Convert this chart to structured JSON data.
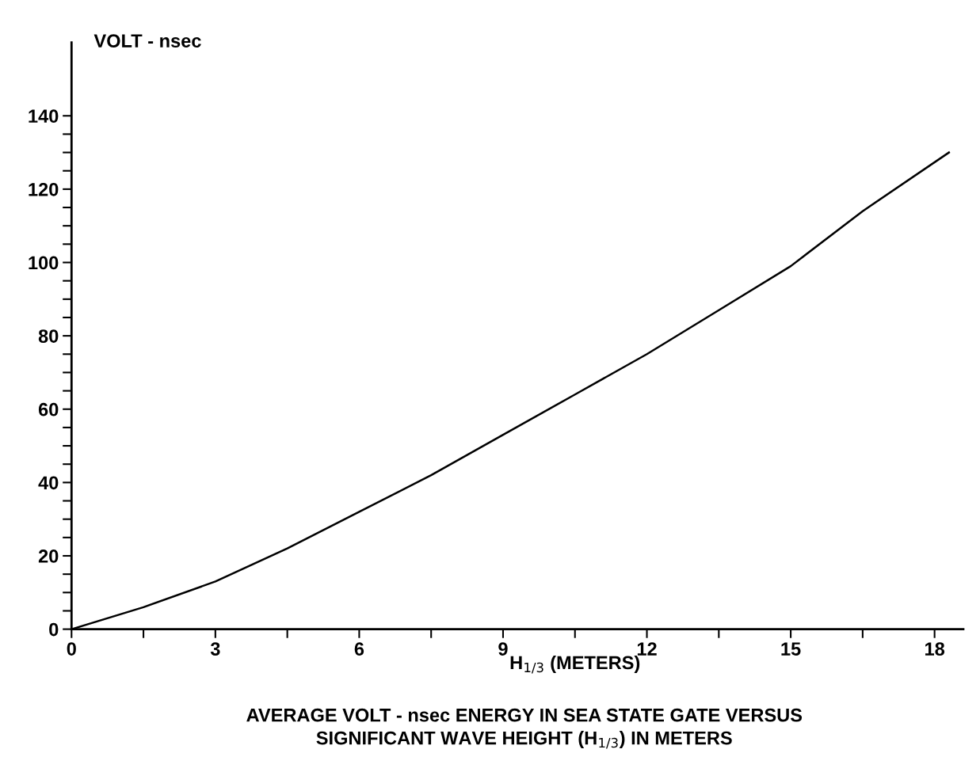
{
  "chart_data": {
    "type": "line",
    "ylabel": "VOLT - nsec",
    "xlabel": "H$_{1/3}$ (METERS)",
    "title": "AVERAGE VOLT - nsec ENERGY IN SEA STATE GATE VERSUS\nSIGNIFICANT WAVE HEIGHT (H$_{1/3}$) IN METERS",
    "x": [
      0,
      1.5,
      3,
      4.5,
      6,
      7.5,
      9,
      10.5,
      12,
      13.5,
      15,
      16.5,
      18.3
    ],
    "series": [
      {
        "color": "#000000",
        "values": [
          0,
          6,
          13,
          22,
          32,
          42,
          53,
          64,
          75,
          87,
          99,
          114,
          130
        ]
      }
    ],
    "xlim": [
      0,
      18.6
    ],
    "ylim": [
      0,
      160
    ],
    "xticks": [
      0,
      {
        "value": 1.5,
        "label": null
      },
      3,
      {
        "value": 4.5,
        "label": null
      },
      6,
      {
        "value": 7.5,
        "label": null
      },
      9,
      {
        "value": 10.5,
        "label": null
      },
      12,
      {
        "value": 13.5,
        "label": null
      },
      15,
      {
        "value": 16.5,
        "label": null
      },
      18
    ],
    "yticks": [
      0,
      {
        "value": 5,
        "label": null
      },
      {
        "value": 10,
        "label": null
      },
      {
        "value": 15,
        "label": null
      },
      20,
      {
        "value": 25,
        "label": null
      },
      {
        "value": 30,
        "label": null
      },
      {
        "value": 35,
        "label": null
      },
      40,
      {
        "value": 45,
        "label": null
      },
      {
        "value": 50,
        "label": null
      },
      {
        "value": 55,
        "label": null
      },
      60,
      {
        "value": 65,
        "label": null
      },
      {
        "value": 70,
        "label": null
      },
      {
        "value": 75,
        "label": null
      },
      80,
      {
        "value": 85,
        "label": null
      },
      {
        "value": 90,
        "label": null
      },
      {
        "value": 95,
        "label": null
      },
      100,
      {
        "value": 105,
        "label": null
      },
      {
        "value": 110,
        "label": null
      },
      {
        "value": 115,
        "label": null
      },
      120,
      {
        "value": 125,
        "label": null
      },
      {
        "value": 130,
        "label": null
      },
      {
        "value": 135,
        "label": null
      },
      140
    ],
    "grid": false,
    "legend": false,
    "marker": "none",
    "line_style": "solid"
  }
}
